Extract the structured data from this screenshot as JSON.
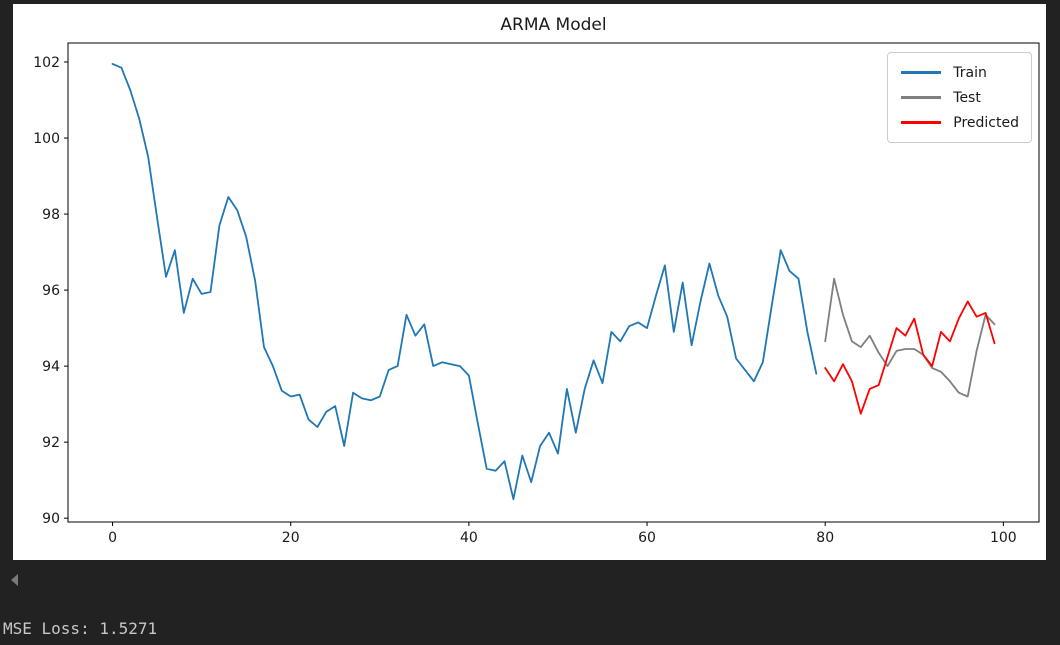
{
  "page": {
    "background": "#202020",
    "figure_background": "#ffffff"
  },
  "terminal": {
    "mse_text": "MSE Loss: 1.5271"
  },
  "scroll": {
    "left_arrow": "left-triangle"
  },
  "chart_data": {
    "type": "line",
    "title": "ARMA Model",
    "xlabel": "",
    "ylabel": "",
    "grid": false,
    "xlim": [
      -5,
      104
    ],
    "ylim": [
      89.9,
      102.5
    ],
    "xticks": [
      0,
      20,
      40,
      60,
      80,
      100
    ],
    "yticks": [
      90,
      92,
      94,
      96,
      98,
      100,
      102
    ],
    "legend": {
      "position": "upper right"
    },
    "axis_color": "#000000",
    "series": [
      {
        "name": "Train",
        "color": "#1f77b4",
        "x_start": 0,
        "values": [
          101.95,
          101.85,
          101.25,
          100.5,
          99.5,
          97.9,
          96.35,
          97.05,
          95.4,
          96.3,
          95.9,
          95.95,
          97.7,
          98.45,
          98.1,
          97.4,
          96.25,
          94.5,
          94.0,
          93.35,
          93.2,
          93.25,
          92.6,
          92.4,
          92.8,
          92.95,
          91.9,
          93.3,
          93.15,
          93.1,
          93.2,
          93.9,
          94.0,
          95.35,
          94.8,
          95.1,
          94.0,
          94.1,
          94.05,
          94.0,
          93.75,
          92.5,
          91.3,
          91.25,
          91.5,
          90.5,
          91.65,
          90.95,
          91.9,
          92.25,
          91.7,
          93.4,
          92.25,
          93.4,
          94.15,
          93.55,
          94.9,
          94.65,
          95.05,
          95.15,
          95.0,
          95.85,
          96.65,
          94.9,
          96.2,
          94.55,
          95.7,
          96.7,
          95.85,
          95.3,
          94.2,
          93.9,
          93.6,
          94.1,
          95.6,
          97.05,
          96.5,
          96.3,
          94.9,
          93.8
        ]
      },
      {
        "name": "Test",
        "color": "#7f7f7f",
        "x_start": 80,
        "values": [
          94.65,
          96.3,
          95.35,
          94.65,
          94.5,
          94.8,
          94.35,
          94.0,
          94.4,
          94.45,
          94.45,
          94.3,
          93.95,
          93.85,
          93.6,
          93.3,
          93.2,
          94.4,
          95.35,
          95.1
        ]
      },
      {
        "name": "Predicted",
        "color": "#ff0000",
        "x_start": 80,
        "values": [
          93.95,
          93.6,
          94.05,
          93.6,
          92.75,
          93.4,
          93.5,
          94.25,
          95.0,
          94.8,
          95.25,
          94.3,
          94.0,
          94.9,
          94.65,
          95.25,
          95.7,
          95.3,
          95.4,
          94.6
        ]
      }
    ]
  }
}
